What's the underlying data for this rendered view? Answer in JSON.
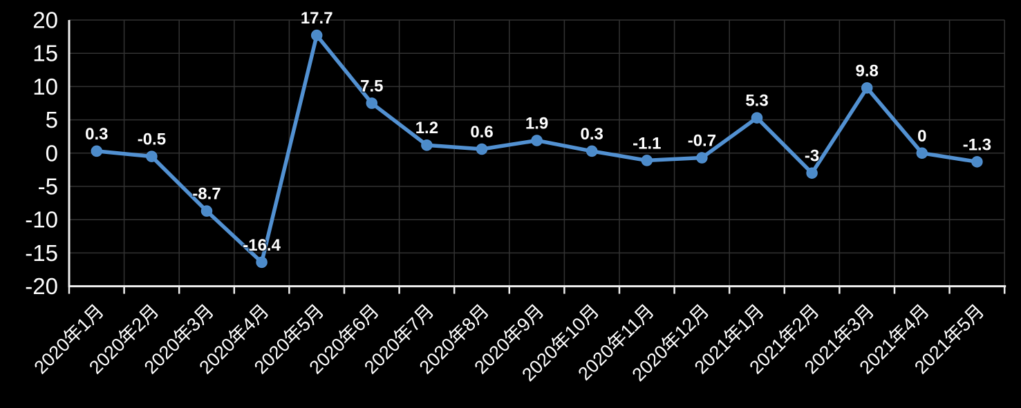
{
  "chart_data": {
    "type": "line",
    "title": "",
    "categories": [
      "2020年1月",
      "2020年2月",
      "2020年3月",
      "2020年4月",
      "2020年5月",
      "2020年6月",
      "2020年7月",
      "2020年8月",
      "2020年9月",
      "2020年10月",
      "2020年11月",
      "2020年12月",
      "2021年1月",
      "2021年2月",
      "2021年3月",
      "2021年4月",
      "2021年5月"
    ],
    "series": [
      {
        "name": "series-1",
        "values": [
          0.3,
          -0.5,
          -8.7,
          -16.4,
          17.7,
          7.5,
          1.2,
          0.6,
          1.9,
          0.3,
          -1.1,
          -0.7,
          5.3,
          -3,
          9.8,
          0,
          -1.3
        ],
        "data_labels": [
          "0.3",
          "-0.5",
          "-8.7",
          "-16.4",
          "17.7",
          "7.5",
          "1.2",
          "0.6",
          "1.9",
          "0.3",
          "-1.1",
          "-0.7",
          "5.3",
          "-3",
          "9.8",
          "0",
          "-1.3"
        ]
      }
    ],
    "xlabel": "",
    "ylabel": "",
    "ylim": [
      -20,
      20
    ],
    "y_ticks": [
      20,
      15,
      10,
      5,
      0,
      -5,
      -10,
      -15,
      -20
    ],
    "y_tick_labels": [
      "20",
      "15",
      "10",
      "5",
      "0",
      "-5",
      "-10",
      "-15",
      "-20"
    ],
    "grid": true,
    "legend_position": "none",
    "x_label_rotation_deg": 45,
    "colors": {
      "background": "#000000",
      "line": "#5291d2",
      "marker": "#4c8bca",
      "gridline": "#333333",
      "axis": "#efefef",
      "text": "#ffffff"
    }
  }
}
